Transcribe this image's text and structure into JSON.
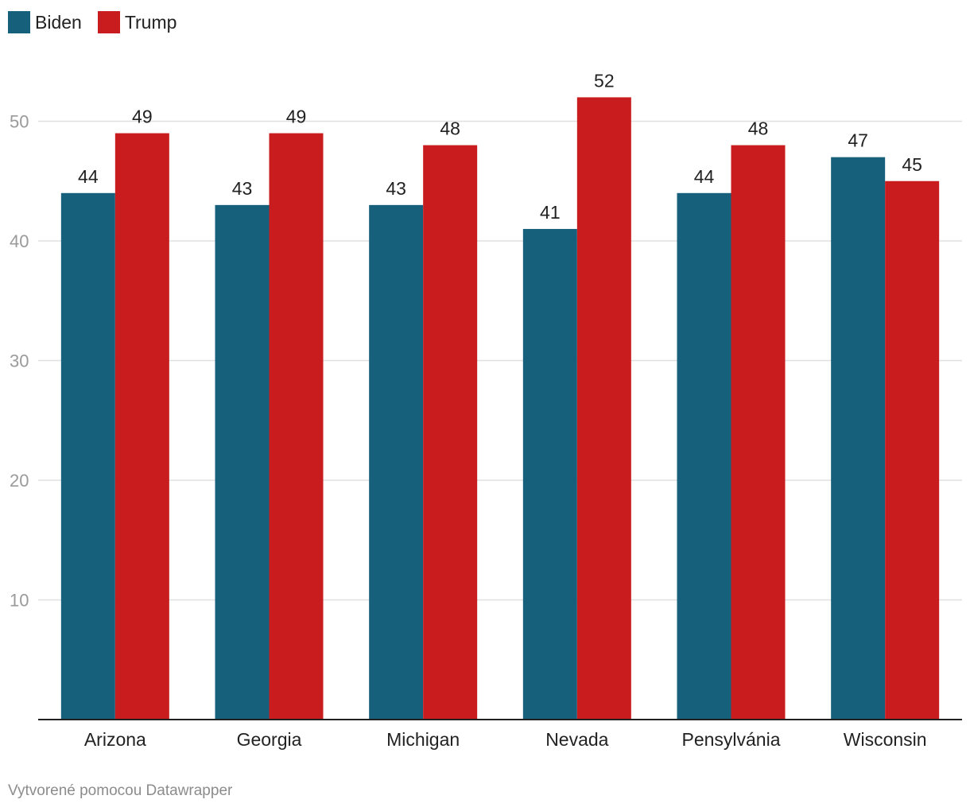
{
  "colors": {
    "Biden": "#17607b",
    "Trump": "#c81c1e",
    "grid": "#e0e0e0",
    "axis": "#222222",
    "tick": "#9a9a9a"
  },
  "chart_data": {
    "type": "bar",
    "categories": [
      "Arizona",
      "Georgia",
      "Michigan",
      "Nevada",
      "Pensylvánia",
      "Wisconsin"
    ],
    "series": [
      {
        "name": "Biden",
        "values": [
          44,
          43,
          43,
          41,
          44,
          47
        ]
      },
      {
        "name": "Trump",
        "values": [
          49,
          49,
          48,
          52,
          48,
          45
        ]
      }
    ],
    "yticks": [
      "10",
      "20",
      "30",
      "40",
      "50"
    ],
    "ylim": [
      0,
      55
    ],
    "grid": true,
    "legend": "top-left",
    "title": "",
    "xlabel": "",
    "ylabel": ""
  },
  "footer": "Vytvorené pomocou Datawrapper"
}
